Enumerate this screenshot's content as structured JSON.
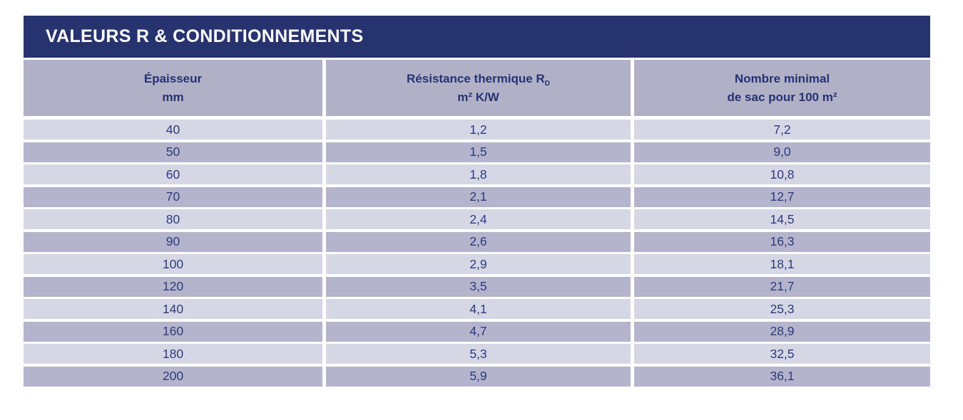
{
  "title": "VALEURS R & CONDITIONNEMENTS",
  "colors": {
    "title_bar_bg": "#27336e",
    "title_text": "#ffffff",
    "header_bg": "#b0b1c7",
    "row_light_bg": "#d6d7e4",
    "row_dark_bg": "#b4b4cc",
    "text_navy": "#2e3a7c",
    "page_bg": "#ffffff"
  },
  "table": {
    "headers": {
      "col1": {
        "line1": "Épaisseur",
        "line2": "mm"
      },
      "col2": {
        "line1": "Résistance thermique R",
        "subscript": "D",
        "line2": "m² K/W"
      },
      "col3": {
        "line1": "Nombre minimal",
        "line2": "de sac pour 100 m²"
      }
    },
    "rows": [
      {
        "thickness": "40",
        "resistance": "1,2",
        "bags": "7,2"
      },
      {
        "thickness": "50",
        "resistance": "1,5",
        "bags": "9,0"
      },
      {
        "thickness": "60",
        "resistance": "1,8",
        "bags": "10,8"
      },
      {
        "thickness": "70",
        "resistance": "2,1",
        "bags": "12,7"
      },
      {
        "thickness": "80",
        "resistance": "2,4",
        "bags": "14,5"
      },
      {
        "thickness": "90",
        "resistance": "2,6",
        "bags": "16,3"
      },
      {
        "thickness": "100",
        "resistance": "2,9",
        "bags": "18,1"
      },
      {
        "thickness": "120",
        "resistance": "3,5",
        "bags": "21,7"
      },
      {
        "thickness": "140",
        "resistance": "4,1",
        "bags": "25,3"
      },
      {
        "thickness": "160",
        "resistance": "4,7",
        "bags": "28,9"
      },
      {
        "thickness": "180",
        "resistance": "5,3",
        "bags": "32,5"
      },
      {
        "thickness": "200",
        "resistance": "5,9",
        "bags": "36,1"
      }
    ]
  }
}
